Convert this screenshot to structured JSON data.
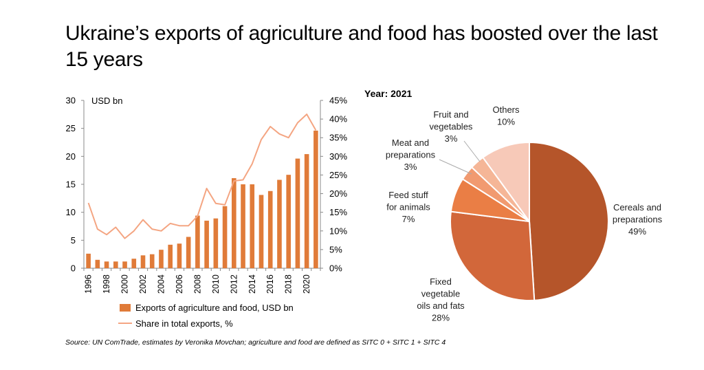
{
  "title": "Ukraine’s exports of agriculture and food has boosted over the last 15 years",
  "source": "Source: UN ComTrade, estimates by Veronika Movchan; agriculture and food are defined as SITC 0 + SITC 1 + SITC 4",
  "chart_data": [
    {
      "type": "bar",
      "unit_label": "USD bn",
      "x": [
        1996,
        1997,
        1998,
        1999,
        2000,
        2001,
        2002,
        2003,
        2004,
        2005,
        2006,
        2007,
        2008,
        2009,
        2010,
        2011,
        2012,
        2013,
        2014,
        2015,
        2016,
        2017,
        2018,
        2019,
        2020,
        2021
      ],
      "xtick_labels": [
        "1996",
        "1998",
        "2000",
        "2002",
        "2004",
        "2006",
        "2008",
        "2010",
        "2012",
        "2014",
        "2016",
        "2018",
        "2020"
      ],
      "ylim_left": [
        0,
        30
      ],
      "yticks_left": [
        "0",
        "5",
        "10",
        "15",
        "20",
        "25",
        "30"
      ],
      "ylim_right": [
        0,
        45
      ],
      "yticks_right": [
        "0%",
        "5%",
        "10%",
        "15%",
        "20%",
        "25%",
        "30%",
        "35%",
        "40%",
        "45%"
      ],
      "series": [
        {
          "name": "Exports of agriculture and food, USD bn",
          "kind": "bar",
          "axis": "left",
          "color": "#E07B39",
          "values": [
            2.6,
            1.5,
            1.2,
            1.2,
            1.2,
            1.7,
            2.3,
            2.5,
            3.3,
            4.2,
            4.4,
            5.6,
            9.4,
            8.5,
            8.9,
            11.1,
            16.1,
            15.0,
            15.0,
            13.1,
            13.8,
            15.8,
            16.7,
            19.6,
            20.4,
            24.6
          ]
        },
        {
          "name": "Share in total exports, %",
          "kind": "line",
          "axis": "right",
          "color": "#F4A582",
          "values": [
            17.5,
            10.5,
            9,
            11,
            8,
            10,
            13,
            10.5,
            10,
            12,
            11.4,
            11.4,
            14,
            21.4,
            17.4,
            17,
            23.4,
            23.7,
            28,
            34.5,
            38,
            36,
            35,
            39,
            41.3,
            37
          ]
        }
      ],
      "legend_position": "bottom",
      "grid": false
    },
    {
      "type": "pie",
      "title": "Year: 2021",
      "slices": [
        {
          "label_lines": [
            "Cereals and",
            "preparations",
            "49%"
          ],
          "value": 49,
          "color": "#B5552A"
        },
        {
          "label_lines": [
            "Fixed",
            "vegetable",
            "oils and fats",
            "28%"
          ],
          "value": 28,
          "color": "#D2673A"
        },
        {
          "label_lines": [
            "Feed stuff",
            "for animals",
            "7%"
          ],
          "value": 7,
          "color": "#EA7E45"
        },
        {
          "label_lines": [
            "Meat and",
            "preparations",
            "3%"
          ],
          "value": 3,
          "color": "#F19A70"
        },
        {
          "label_lines": [
            "Fruit and",
            "vegetables",
            "3%"
          ],
          "value": 3,
          "color": "#F5B697"
        },
        {
          "label_lines": [
            "Others",
            "10%"
          ],
          "value": 10,
          "color": "#F7C9B8"
        }
      ]
    }
  ]
}
